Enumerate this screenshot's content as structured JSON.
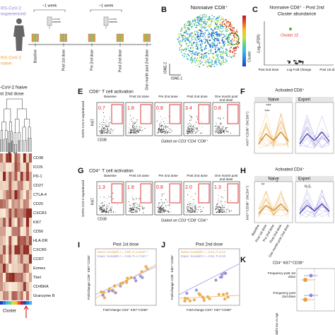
{
  "panel_a": {
    "top_label": "RS-CoV-2",
    "top_label2": "experienced",
    "interval1": "~1 week",
    "interval2": "~1 week",
    "vaccine1": "COVID vaccine",
    "vaccine2": "COVID vaccine",
    "timepoints": [
      "Baseline",
      "Post 1st dose",
      "Pre 2nd dose",
      "Post 2nd dose",
      "One month post 2nd dose"
    ],
    "bottom_label": "RS-CoV-2",
    "bottom_label2": "naive"
  },
  "panel_b": {
    "letter": "B",
    "title": "Nonnaive CD8⁺",
    "x_label": "tSNE-1",
    "y_label": "tSNE-2",
    "legend_title": "Cluster"
  },
  "panel_c": {
    "letter": "C",
    "title": "Nonnaive CD8⁺ - Post 2nd",
    "subtitle": "Cluster abundance",
    "annotation": "Cluster 12",
    "y_label": "-Log₁₀(FDR)",
    "x_label": "Log Fold Change",
    "left_label": "Post 2nd dose",
    "right_label": "Post 1st dose"
  },
  "panel_d": {
    "title1": "-CoV-2 Naive",
    "title2": "st 2nd dose",
    "markers": [
      "CD38",
      "ICOS",
      "PD-1",
      "CD27",
      "CTLA-4",
      "CD25",
      "CXCR3",
      "Ki67",
      "CD56",
      "HLA-DR",
      "CXCR5",
      "CCR7",
      "Eomes",
      "Tbet",
      "CD45RA",
      "Granzyme B"
    ],
    "x_label": "Cluster"
  },
  "panel_e": {
    "letter": "E",
    "title": "CD8⁺ T cell activation",
    "group": "SARS-CoV-2 experienced",
    "values": [
      "0.7",
      "1.8",
      "0.8",
      "3.4",
      "0.8"
    ],
    "y_axis": "Ki67",
    "x_axis": "CD38",
    "gating": "Gated on CD3⁺CD4⁻CD8⁺"
  },
  "panel_f": {
    "letter": "F",
    "title": "Activated CD8⁺",
    "groups": [
      "Naive",
      "Experi"
    ],
    "y_label": "Ki67⁺CD38⁺ (%CD8⁺)",
    "significance": [
      "***",
      "***"
    ]
  },
  "panel_g": {
    "letter": "G",
    "title": "CD4⁺ T cell activation",
    "group": "SARS-CoV-2 experienced",
    "values": [
      "1.3",
      "1.8",
      "0.8",
      "2.0",
      "1.3"
    ],
    "y_axis": "Ki67",
    "x_axis": "CD38",
    "gating": "Gated on CD3⁺CD8⁻CD4⁺"
  },
  "panel_h": {
    "letter": "H",
    "title": "Activated CD4⁺",
    "groups": [
      "Naive",
      "Experi"
    ],
    "y_label": "Ki67⁺CD38⁺ (%CD4⁺)",
    "significance": [
      "**",
      "*",
      "N.S."
    ]
  },
  "panel_i": {
    "letter": "I",
    "title": "Post 1st dose",
    "stat_naive": "Naive: Kendall's τ = 0.80, P=1.9x10⁻⁵",
    "stat_exper": "Exper: Kendall's τ = 0.69, P=1.7x10⁻²",
    "y_label": "Fold-change CD8⁺ Ki67⁺CD38⁺",
    "x_label": "Fold-change CD4⁺ Ki67⁺CD38⁺"
  },
  "panel_j": {
    "letter": "J",
    "title": "Post 2nd dose",
    "stat_naive": "Naive: Kendall's τ = 0.23, P=0.10",
    "stat_exper": "Exper: Kendall's τ = 0.51, P=0.02",
    "y_label": "Fold-change CD8⁺ Ki67⁺CD38⁺",
    "x_label": "Fold-change CD4⁺ Ki67⁺CD38⁺"
  },
  "panel_k": {
    "letter": "K",
    "title": "CD4⁺ Ki67⁺CD38⁺",
    "rows": [
      "Frequency post 1st dose",
      "Frequency post 2nd dose"
    ],
    "x_label": "Kendall's tau vs Age"
  }
}
